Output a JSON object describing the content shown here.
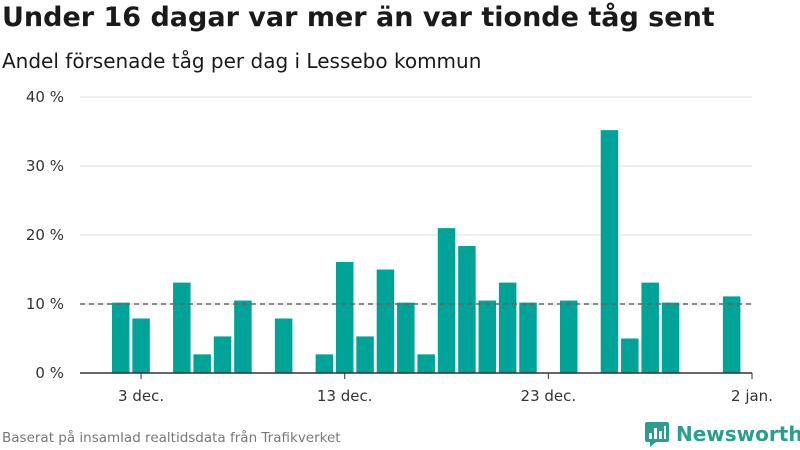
{
  "title": "Under 16 dagar var mer än var tionde tåg sent",
  "subtitle": "Andel försenade tåg per dag i Lessebo kommun",
  "source": "Baserat på insamlad realtidsdata från Trafikverket",
  "brand": "Newsworthy",
  "colors": {
    "bar": "#00a398",
    "brand": "#2a9d8f",
    "grid": "#dddddd",
    "reference": "#666666"
  },
  "chart_data": {
    "type": "bar",
    "title": "Under 16 dagar var mer än var tionde tåg sent",
    "subtitle": "Andel försenade tåg per dag i Lessebo kommun",
    "xlabel": "",
    "ylabel": "",
    "unit": "%",
    "ylim": [
      0,
      40
    ],
    "yticks": [
      0,
      10,
      20,
      30,
      40
    ],
    "ytick_labels": [
      "0 %",
      "10 %",
      "20 %",
      "30 %",
      "40 %"
    ],
    "xlim": [
      "2023-11-30",
      "2024-01-02"
    ],
    "xticks": [
      "2023-12-03",
      "2023-12-13",
      "2023-12-23",
      "2024-01-02"
    ],
    "xtick_labels": [
      "3 dec.",
      "13 dec.",
      "23 dec.",
      "2 jan."
    ],
    "reference_line": 10,
    "grid": true,
    "dates": [
      "2023-12-02",
      "2023-12-03",
      "2023-12-04",
      "2023-12-05",
      "2023-12-06",
      "2023-12-07",
      "2023-12-08",
      "2023-12-09",
      "2023-12-10",
      "2023-12-11",
      "2023-12-12",
      "2023-12-13",
      "2023-12-14",
      "2023-12-15",
      "2023-12-16",
      "2023-12-17",
      "2023-12-18",
      "2023-12-19",
      "2023-12-20",
      "2023-12-21",
      "2023-12-22",
      "2023-12-23",
      "2023-12-24",
      "2023-12-25",
      "2023-12-26",
      "2023-12-27",
      "2023-12-28",
      "2023-12-29",
      "2023-12-30",
      "2023-12-31",
      "2024-01-01"
    ],
    "values": [
      10.2,
      7.9,
      0,
      13.1,
      2.7,
      5.3,
      10.5,
      0,
      7.9,
      0,
      2.7,
      16.1,
      5.3,
      15.0,
      10.2,
      2.7,
      21.0,
      18.4,
      10.5,
      13.1,
      10.2,
      0,
      10.5,
      0,
      35.2,
      5.0,
      13.1,
      10.2,
      0,
      0,
      11.1
    ]
  }
}
